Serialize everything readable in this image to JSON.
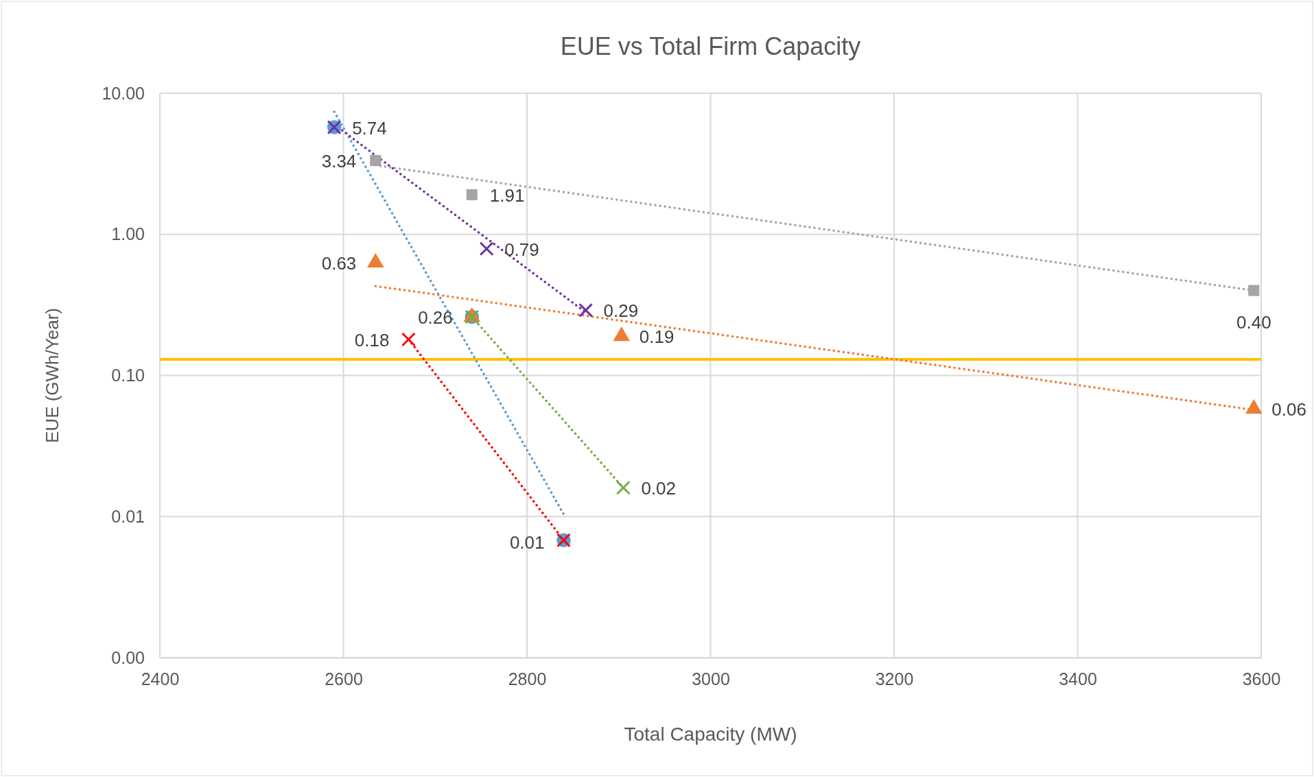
{
  "chart_data": {
    "type": "scatter",
    "title": "EUE vs Total Firm Capacity",
    "xlabel": "Total Capacity (MW)",
    "ylabel": "EUE (GWh/Year)",
    "log": "y",
    "grid": true,
    "xlim": [
      2400,
      3600
    ],
    "xticks": [
      2400,
      2600,
      2800,
      3000,
      3200,
      3400,
      3600
    ],
    "ylim": [
      0.001,
      10
    ],
    "yticks": [
      {
        "value": 0.001,
        "label": "0.00"
      },
      {
        "value": 0.01,
        "label": "0.01"
      },
      {
        "value": 0.1,
        "label": "0.10"
      },
      {
        "value": 1,
        "label": "1.00"
      },
      {
        "value": 10,
        "label": "10.00"
      }
    ],
    "ref_lines": [
      {
        "axis": "y",
        "value": 0.13,
        "color": "#ffc000",
        "line_style": "solid"
      }
    ],
    "series": [
      {
        "color": "#5b9bd5",
        "marker": "circle",
        "x": [
          2590,
          2740,
          2840
        ],
        "values": [
          5.74,
          0.26,
          0.0068
        ],
        "value_labels": [
          "5.74",
          "0.26",
          "0.01"
        ]
      },
      {
        "color": "#a5a5a5",
        "marker": "square",
        "x": [
          2635,
          2740,
          3592
        ],
        "values": [
          3.34,
          1.91,
          0.4
        ],
        "value_labels": [
          "3.34",
          "1.91",
          "0.40"
        ]
      },
      {
        "color": "#ed7d31",
        "marker": "triangle",
        "x": [
          2635,
          2740,
          2903,
          3592
        ],
        "values": [
          0.63,
          0.26,
          0.19,
          0.058
        ],
        "value_labels": [
          "0.63",
          null,
          "0.19",
          "0.06"
        ]
      },
      {
        "color": "#7030a0",
        "marker": "cross",
        "x": [
          2590,
          2756,
          2864
        ],
        "values": [
          5.74,
          0.79,
          0.29
        ],
        "value_labels": [
          null,
          "0.79",
          "0.29"
        ]
      },
      {
        "color": "#ff0000",
        "marker": "cross",
        "x": [
          2671,
          2840
        ],
        "values": [
          0.18,
          0.0068
        ],
        "value_labels": [
          "0.18",
          null
        ]
      },
      {
        "color": "#70ad47",
        "marker": "cross",
        "x": [
          2740,
          2905
        ],
        "values": [
          0.26,
          0.016
        ],
        "value_labels": [
          null,
          "0.02"
        ]
      },
      {
        "type": "line",
        "color": "#5b9bd5",
        "marker": "none",
        "line_style": "dotted",
        "x": [
          2590,
          2840
        ],
        "values": [
          7.4,
          0.0104
        ]
      },
      {
        "type": "line",
        "color": "#a5a5a5",
        "marker": "none",
        "line_style": "dotted",
        "x": [
          2635,
          3592
        ],
        "values": [
          3.09,
          0.4
        ]
      },
      {
        "type": "line",
        "color": "#ed7d31",
        "marker": "none",
        "line_style": "dotted",
        "x": [
          2635,
          3592
        ],
        "values": [
          0.43,
          0.057
        ]
      },
      {
        "type": "line",
        "color": "#7030a0",
        "marker": "none",
        "line_style": "dotted",
        "x": [
          2590,
          2864
        ],
        "values": [
          6.0,
          0.28
        ]
      },
      {
        "type": "line",
        "color": "#ff0000",
        "marker": "none",
        "line_style": "dotted",
        "x": [
          2671,
          2840
        ],
        "values": [
          0.18,
          0.0068
        ]
      },
      {
        "type": "line",
        "color": "#70ad47",
        "marker": "none",
        "line_style": "dotted",
        "x": [
          2740,
          2905
        ],
        "values": [
          0.26,
          0.016
        ]
      }
    ]
  }
}
